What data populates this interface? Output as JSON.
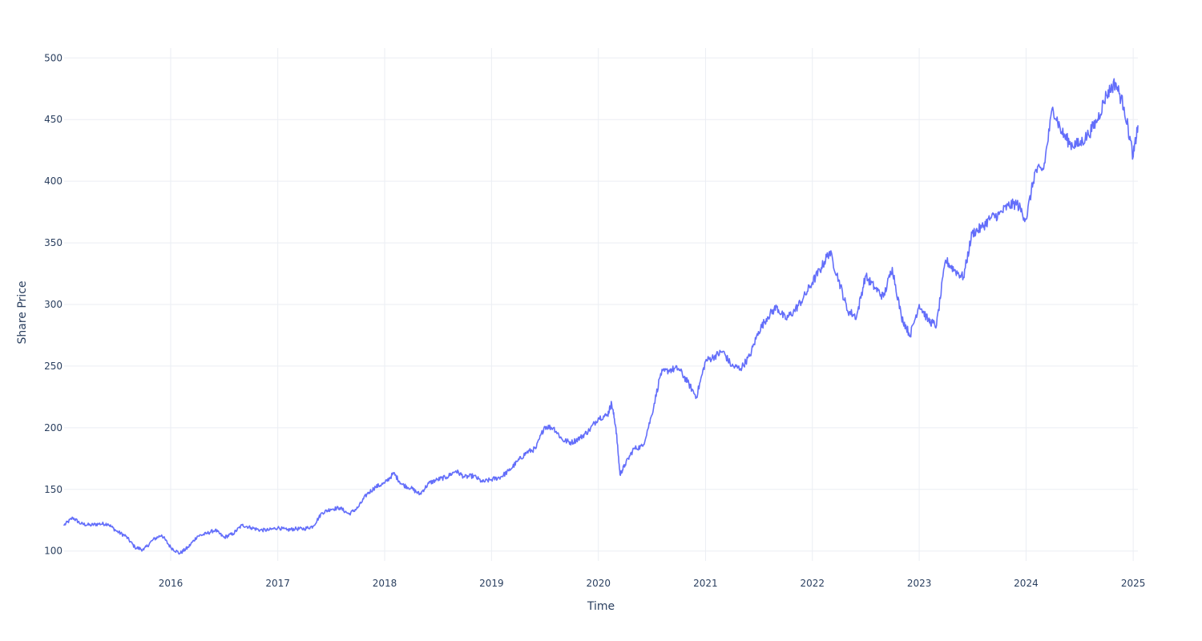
{
  "chart_data": {
    "type": "line",
    "title": "",
    "xlabel": "Time",
    "ylabel": "Share Price",
    "xlim": [
      "2015-01-02",
      "2025-01-17"
    ],
    "ylim": [
      92,
      508
    ],
    "x_ticks": [
      "2016",
      "2017",
      "2018",
      "2019",
      "2020",
      "2021",
      "2022",
      "2023",
      "2024",
      "2025"
    ],
    "y_ticks": [
      100,
      150,
      200,
      250,
      300,
      350,
      400,
      450,
      500
    ],
    "grid": true,
    "legend": "none",
    "line_color": "#636efa",
    "series": [
      {
        "x": [
          "2015-01-02",
          "2015-02-01",
          "2015-03-01",
          "2015-04-01",
          "2015-05-01",
          "2015-06-01",
          "2015-07-01",
          "2015-08-01",
          "2015-09-01",
          "2015-10-01",
          "2015-11-01",
          "2015-12-01",
          "2016-01-01",
          "2016-02-01",
          "2016-03-01",
          "2016-04-01",
          "2016-05-01",
          "2016-06-01",
          "2016-07-01",
          "2016-08-01",
          "2016-09-01",
          "2016-10-01",
          "2016-11-01",
          "2016-12-01",
          "2017-01-01",
          "2017-02-01",
          "2017-03-01",
          "2017-04-01",
          "2017-05-01",
          "2017-06-01",
          "2017-07-01",
          "2017-08-01",
          "2017-09-01",
          "2017-10-01",
          "2017-11-01",
          "2017-12-01",
          "2018-01-01",
          "2018-02-01",
          "2018-03-01",
          "2018-04-01",
          "2018-05-01",
          "2018-06-01",
          "2018-07-01",
          "2018-08-01",
          "2018-09-01",
          "2018-10-01",
          "2018-11-01",
          "2018-12-01",
          "2019-01-01",
          "2019-02-01",
          "2019-03-01",
          "2019-04-01",
          "2019-05-01",
          "2019-06-01",
          "2019-07-01",
          "2019-08-01",
          "2019-09-01",
          "2019-10-01",
          "2019-11-01",
          "2019-12-01",
          "2020-01-01",
          "2020-02-01",
          "2020-02-15",
          "2020-03-01",
          "2020-03-15",
          "2020-04-01",
          "2020-05-01",
          "2020-06-01",
          "2020-07-01",
          "2020-08-01",
          "2020-09-01",
          "2020-10-01",
          "2020-11-01",
          "2020-12-01",
          "2021-01-01",
          "2021-02-01",
          "2021-03-01",
          "2021-04-01",
          "2021-05-01",
          "2021-06-01",
          "2021-07-01",
          "2021-08-01",
          "2021-09-01",
          "2021-10-01",
          "2021-11-01",
          "2021-12-01",
          "2022-01-01",
          "2022-02-01",
          "2022-03-01",
          "2022-04-01",
          "2022-05-01",
          "2022-06-01",
          "2022-07-01",
          "2022-08-01",
          "2022-09-01",
          "2022-10-01",
          "2022-11-01",
          "2022-12-01",
          "2023-01-01",
          "2023-02-01",
          "2023-03-01",
          "2023-04-01",
          "2023-05-01",
          "2023-06-01",
          "2023-07-01",
          "2023-08-01",
          "2023-09-01",
          "2023-10-01",
          "2023-11-01",
          "2023-12-01",
          "2024-01-01",
          "2024-02-01",
          "2024-03-01",
          "2024-04-01",
          "2024-05-01",
          "2024-06-01",
          "2024-07-01",
          "2024-08-01",
          "2024-09-01",
          "2024-10-01",
          "2024-11-01",
          "2024-12-01",
          "2025-01-01",
          "2025-01-17"
        ],
        "y": [
          121,
          127,
          122,
          121,
          122,
          122,
          116,
          112,
          103,
          101,
          109,
          113,
          103,
          98,
          103,
          112,
          114,
          117,
          111,
          114,
          121,
          119,
          117,
          117,
          119,
          117,
          118,
          118,
          120,
          131,
          134,
          135,
          130,
          135,
          146,
          152,
          155,
          163,
          154,
          151,
          146,
          155,
          158,
          160,
          165,
          160,
          161,
          156,
          158,
          160,
          165,
          173,
          180,
          183,
          201,
          200,
          190,
          188,
          192,
          198,
          208,
          210,
          220,
          200,
          162,
          170,
          183,
          185,
          210,
          244,
          247,
          248,
          237,
          225,
          254,
          258,
          262,
          250,
          248,
          258,
          278,
          290,
          298,
          288,
          295,
          305,
          318,
          330,
          343,
          320,
          295,
          290,
          323,
          314,
          306,
          330,
          290,
          275,
          300,
          287,
          283,
          336,
          328,
          322,
          358,
          362,
          370,
          373,
          380,
          382,
          369,
          408,
          410,
          460,
          440,
          430,
          430,
          438,
          450,
          470,
          480,
          460,
          420,
          445
        ]
      }
    ]
  }
}
